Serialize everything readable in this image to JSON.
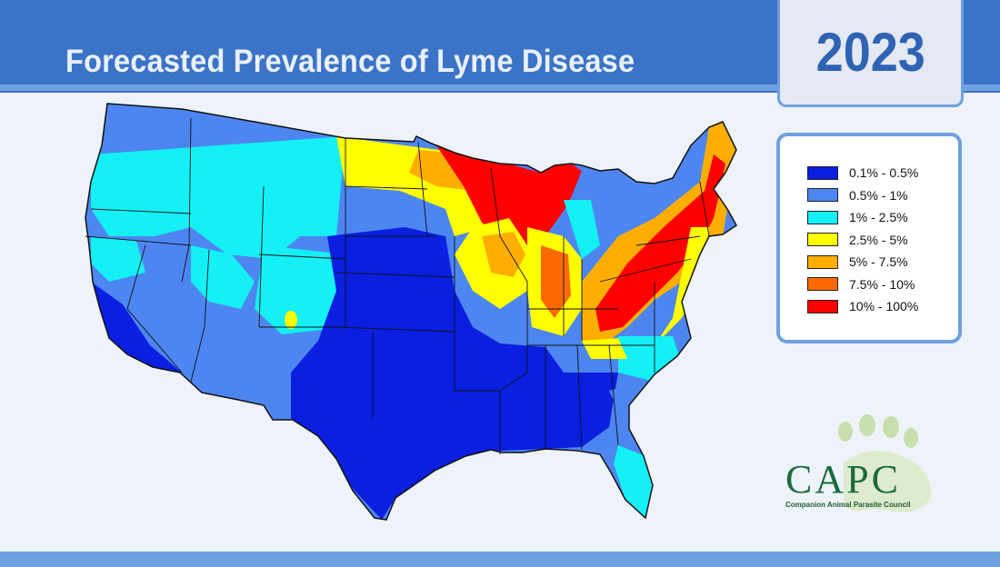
{
  "header": {
    "title": "Forecasted Prevalence of Lyme Disease",
    "year": "2023"
  },
  "legend": {
    "items": [
      {
        "label": "0.1% - 0.5%",
        "color": "#0a1fe0"
      },
      {
        "label": "0.5% - 1%",
        "color": "#4d86f0"
      },
      {
        "label": "1% - 2.5%",
        "color": "#14f0f5"
      },
      {
        "label": "2.5% - 5%",
        "color": "#ffff00"
      },
      {
        "label": "5% - 7.5%",
        "color": "#ffae00"
      },
      {
        "label": "7.5% - 10%",
        "color": "#ff6a00"
      },
      {
        "label": "10% - 100%",
        "color": "#ff0000"
      }
    ]
  },
  "logo": {
    "name": "CAPC",
    "subtitle": "Companion Animal Parasite Council"
  }
}
